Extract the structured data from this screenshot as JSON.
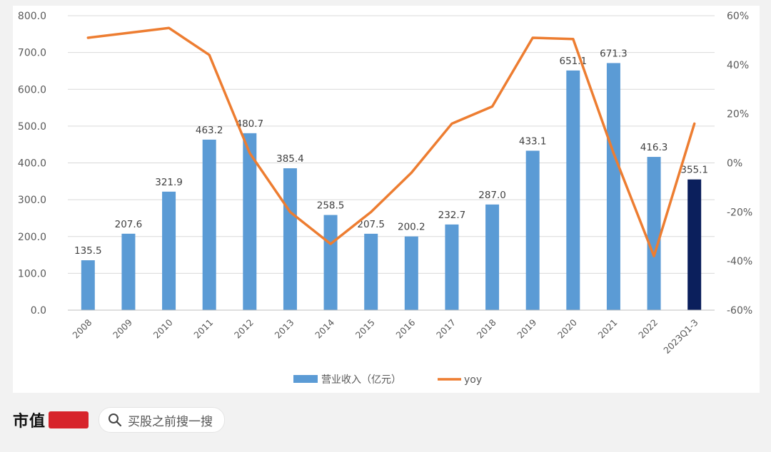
{
  "chart_data": {
    "type": "bar",
    "categories": [
      "2008",
      "2009",
      "2010",
      "2011",
      "2012",
      "2013",
      "2014",
      "2015",
      "2016",
      "2017",
      "2018",
      "2019",
      "2020",
      "2021",
      "2022",
      "2023Q1-3"
    ],
    "series": [
      {
        "name": "营业收入（亿元）",
        "type": "bar",
        "axis": "left",
        "values": [
          135.5,
          207.6,
          321.9,
          463.2,
          480.7,
          385.4,
          258.5,
          207.5,
          200.2,
          232.7,
          287.0,
          433.1,
          651.1,
          671.3,
          416.3,
          355.1
        ],
        "labels": [
          "135.5",
          "207.6",
          "321.9",
          "463.2",
          "480.7",
          "385.4",
          "258.5",
          "207.5",
          "200.2",
          "232.7",
          "287.0",
          "433.1",
          "651.1",
          "671.3",
          "416.3",
          "355.1"
        ]
      },
      {
        "name": "yoy",
        "type": "line",
        "axis": "right",
        "values": [
          51,
          53,
          55,
          44,
          4,
          -20,
          -33,
          -20,
          -4,
          16,
          23,
          51,
          50.5,
          4,
          -38,
          16
        ]
      }
    ],
    "left_axis": {
      "min": 0,
      "max": 800,
      "step": 100,
      "tick_labels": [
        "0.0",
        "100.0",
        "200.0",
        "300.0",
        "400.0",
        "500.0",
        "600.0",
        "700.0",
        "800.0"
      ]
    },
    "right_axis": {
      "min": -60,
      "max": 60,
      "step": 20,
      "tick_labels": [
        "-60%",
        "-40%",
        "-20%",
        "0%",
        "20%",
        "40%",
        "60%"
      ]
    },
    "grid": true,
    "legend_position": "bottom",
    "colors": {
      "bar": "#5b9bd5",
      "bar_highlight": "#0b1f5c",
      "line": "#ed7d31",
      "grid": "#d9d9d9",
      "text": "#595959"
    }
  },
  "footer": {
    "brand": "市值",
    "search_placeholder": "买股之前搜一搜",
    "search_icon": "search-icon"
  }
}
